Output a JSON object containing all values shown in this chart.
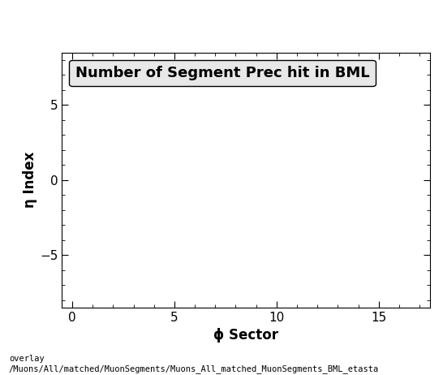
{
  "title": "Number of Segment Prec hit in BML",
  "xlabel": "ϕ Sector",
  "ylabel": "η Index",
  "xlim": [
    -0.5,
    17.5
  ],
  "ylim": [
    -8.5,
    8.5
  ],
  "xticks": [
    0,
    5,
    10,
    15
  ],
  "yticks": [
    -5,
    0,
    5
  ],
  "background_color": "#ffffff",
  "plot_bg_color": "#ffffff",
  "title_fontsize": 13,
  "axis_label_fontsize": 12,
  "tick_fontsize": 11,
  "footer_text": "overlay\n/Muons/All/matched/MuonSegments/Muons_All_matched_MuonSegments_BML_etasta",
  "footer_fontsize": 7.5,
  "title_box_facecolor": "#e8e8e8",
  "title_box_edgecolor": "#000000"
}
